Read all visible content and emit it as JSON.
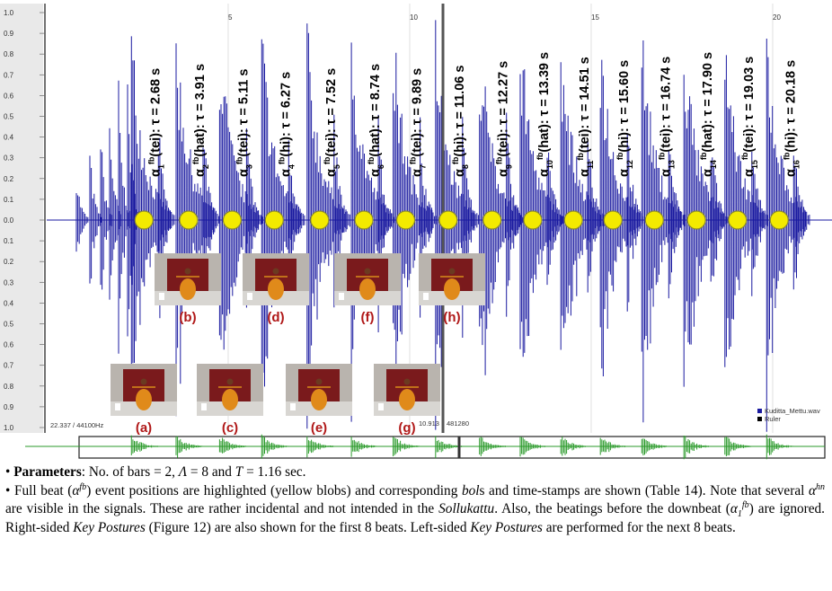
{
  "figure": {
    "y_axis_labels": [
      "1.0",
      "0.9",
      "0.8",
      "0.7",
      "0.6",
      "0.5",
      "0.4",
      "0.3",
      "0.2",
      "0.1",
      "0.0",
      "0.1",
      "0.2",
      "0.3",
      "0.4",
      "0.5",
      "0.6",
      "0.7",
      "0.8",
      "0.9",
      "1.0"
    ],
    "time_ticks": [
      5,
      10,
      15,
      20
    ],
    "events": [
      {
        "symbol": "α",
        "index": "1",
        "superscript": "fb",
        "text": "(tei): τ = 2.68 s",
        "time": 2.68
      },
      {
        "symbol": "α",
        "index": "2",
        "superscript": "fb",
        "text": "(hat): τ = 3.91 s",
        "time": 3.91
      },
      {
        "symbol": "α",
        "index": "3",
        "superscript": "fb",
        "text": "(tei): τ = 5.11 s",
        "time": 5.11
      },
      {
        "symbol": "α",
        "index": "4",
        "superscript": "fb",
        "text": "(hi): τ = 6.27 s",
        "time": 6.27
      },
      {
        "symbol": "α",
        "index": "5",
        "superscript": "fb",
        "text": "(tei): τ = 7.52 s",
        "time": 7.52
      },
      {
        "symbol": "α",
        "index": "6",
        "superscript": "fb",
        "text": "(hat): τ = 8.74 s",
        "time": 8.74
      },
      {
        "symbol": "α",
        "index": "7",
        "superscript": "fb",
        "text": "(tei): τ = 9.89 s",
        "time": 9.89
      },
      {
        "symbol": "α",
        "index": "8",
        "superscript": "fb",
        "text": "(hi): τ = 11.06 s",
        "time": 11.06
      },
      {
        "symbol": "α",
        "index": "9",
        "superscript": "fb",
        "text": "(tei): τ = 12.27 s",
        "time": 12.27
      },
      {
        "symbol": "α",
        "index": "10",
        "superscript": "fb",
        "text": "(hat): τ = 13.39 s",
        "time": 13.39
      },
      {
        "symbol": "α",
        "index": "11",
        "superscript": "fb",
        "text": "(tei): τ = 14.51 s",
        "time": 14.51
      },
      {
        "symbol": "α",
        "index": "12",
        "superscript": "fb",
        "text": "(hi): τ = 15.60 s",
        "time": 15.6
      },
      {
        "symbol": "α",
        "index": "13",
        "superscript": "fb",
        "text": "(tei): τ = 16.74 s",
        "time": 16.74
      },
      {
        "symbol": "α",
        "index": "14",
        "superscript": "fb",
        "text": "(hat): τ = 17.90 s",
        "time": 17.9
      },
      {
        "symbol": "α",
        "index": "15",
        "superscript": "fb",
        "text": "(tei): τ = 19.03 s",
        "time": 19.03
      },
      {
        "symbol": "α",
        "index": "16",
        "superscript": "fb",
        "text": "(hi): τ = 20.18 s",
        "time": 20.18
      }
    ],
    "postures": [
      {
        "label": "(a)"
      },
      {
        "label": "(b)"
      },
      {
        "label": "(c)"
      },
      {
        "label": "(d)"
      },
      {
        "label": "(e)"
      },
      {
        "label": "(f)"
      },
      {
        "label": "(g)"
      },
      {
        "label": "(h)"
      }
    ],
    "status": {
      "sample_rate": "22.337 / 44100Hz",
      "cursor_time": "10.913",
      "cursor_sample": "481280"
    },
    "legend": [
      {
        "name": "Kuditta_Mettu.wav",
        "color": "#1a1aa0"
      },
      {
        "name": "Ruler",
        "color": "#000000"
      }
    ]
  },
  "caption": {
    "paragraphs": [
      {
        "runs": [
          {
            "text": "• "
          },
          {
            "text": "Parameters",
            "style": "bold"
          },
          {
            "text": ": No. of bars = 2, "
          },
          {
            "text": "Λ",
            "style": "italic"
          },
          {
            "text": " = 8 and "
          },
          {
            "text": "T",
            "style": "italic"
          },
          {
            "text": " = 1.16 sec."
          }
        ]
      },
      {
        "runs": [
          {
            "text": "• Full beat ("
          },
          {
            "text": "α",
            "style": "italic"
          },
          {
            "text": "fb",
            "style": "sup"
          },
          {
            "text": ") event positions are highlighted (yellow blobs) and corresponding "
          },
          {
            "text": "bol",
            "style": "italic"
          },
          {
            "text": "s and time-stamps are shown (Table 14). Note that several "
          },
          {
            "text": "α",
            "style": "italic"
          },
          {
            "text": "hn",
            "style": "sup"
          },
          {
            "text": " are visible in the signals. These are rather incidental and not intended in the "
          },
          {
            "text": "Sollukattu",
            "style": "italic"
          },
          {
            "text": ". Also, the beatings before the downbeat ("
          },
          {
            "text": "α",
            "style": "italic"
          },
          {
            "text": "1",
            "style": "sub"
          },
          {
            "text": "fb",
            "style": "sup"
          },
          {
            "text": ") are ignored. Right-sided "
          },
          {
            "text": "Key Postures",
            "style": "italic"
          },
          {
            "text": " (Figure 12) are also shown for the first 8 beats. Left-sided "
          },
          {
            "text": "Key Postures",
            "style": "italic"
          },
          {
            "text": " are performed for the next 8 beats."
          }
        ]
      }
    ]
  }
}
